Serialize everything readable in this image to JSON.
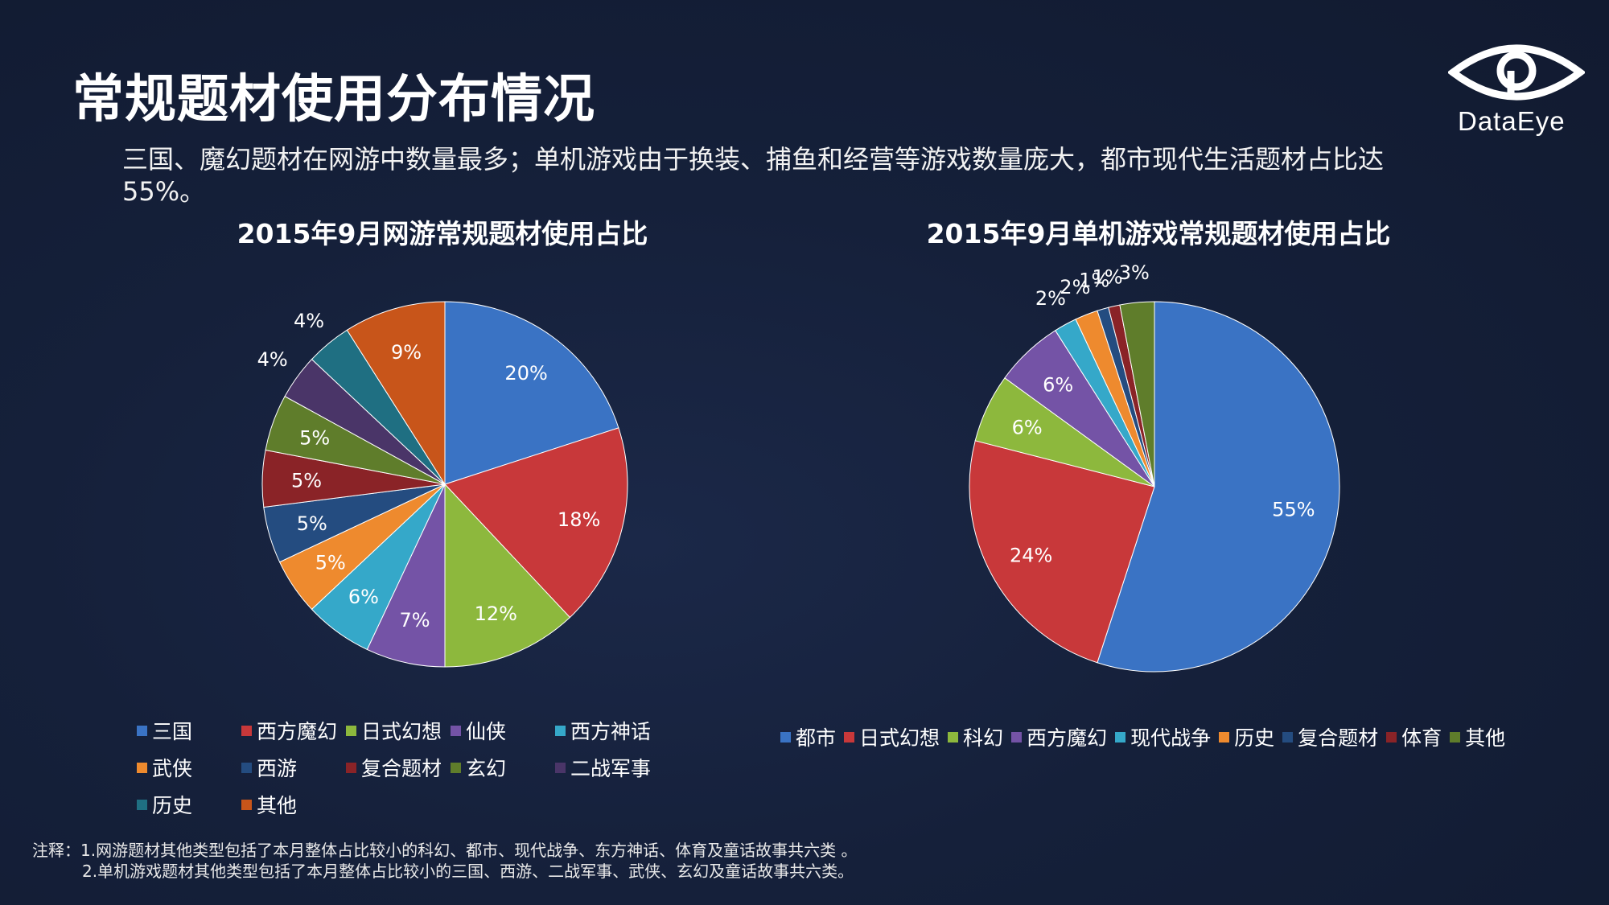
{
  "title": "常规题材使用分布情况",
  "subtitle": "三国、魔幻题材在网游中数量最多；单机游戏由于换装、捕鱼和经营等游戏数量庞大，都市现代生活题材占比达55%。",
  "logo": {
    "text": "DataEye",
    "icon": "eye-logo-icon"
  },
  "chart_data": [
    {
      "type": "pie",
      "title": "2015年9月网游常规题材使用占比",
      "categories": [
        "三国",
        "西方魔幻",
        "日式幻想",
        "仙侠",
        "西方神话",
        "武侠",
        "西游",
        "复合题材",
        "玄幻",
        "二战军事",
        "历史",
        "其他"
      ],
      "values": [
        20,
        18,
        12,
        7,
        6,
        5,
        5,
        5,
        5,
        4,
        4,
        9
      ],
      "labels": [
        "20%",
        "18%",
        "12%",
        "7%",
        "6%",
        "5%",
        "5%",
        "5%",
        "5%",
        "4%",
        "4%",
        "9%"
      ],
      "colors": [
        "#3a73c4",
        "#c8383a",
        "#8db83d",
        "#7453a6",
        "#35a8c9",
        "#ee8a2e",
        "#244c80",
        "#8a2327",
        "#5f7d2b",
        "#4a3568",
        "#1f6f82",
        "#c8551a"
      ],
      "legend": "bottom"
    },
    {
      "type": "pie",
      "title": "2015年9月单机游戏常规题材使用占比",
      "categories": [
        "都市",
        "日式幻想",
        "科幻",
        "西方魔幻",
        "现代战争",
        "历史",
        "复合题材",
        "体育",
        "其他"
      ],
      "values": [
        55,
        24,
        6,
        6,
        2,
        2,
        1,
        1,
        3
      ],
      "labels": [
        "55%",
        "24%",
        "6%",
        "6%",
        "2%",
        "2%",
        "1%",
        "1%",
        "3%"
      ],
      "colors": [
        "#3a73c4",
        "#c8383a",
        "#8db83d",
        "#7453a6",
        "#35a8c9",
        "#ee8a2e",
        "#244c80",
        "#8a2327",
        "#5f7d2b"
      ],
      "legend": "bottom"
    }
  ],
  "notes": {
    "line1": "注释：1.网游题材其他类型包括了本月整体占比较小的科幻、都市、现代战争、东方神话、体育及童话故事共六类 。",
    "line2": "2.单机游戏题材其他类型包括了本月整体占比较小的三国、西游、二战军事、武侠、玄幻及童话故事共六类。"
  }
}
